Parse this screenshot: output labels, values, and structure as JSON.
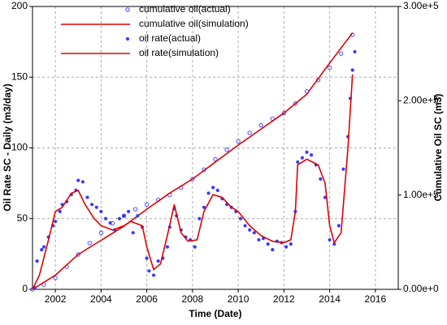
{
  "chart_data": {
    "type": "scatter-line",
    "xlabel": "Time (Date)",
    "ylabel": "Oil Rate SC - Daily (m3/day)",
    "y2label": "Cumulative Oil SC (m3)",
    "xlim": [
      2001,
      2017
    ],
    "xticks": [
      2002,
      2004,
      2006,
      2008,
      2010,
      2012,
      2014,
      2016
    ],
    "ylim": [
      0,
      200
    ],
    "yticks": [
      0,
      50,
      100,
      150,
      200
    ],
    "y2lim": [
      0,
      300000
    ],
    "y2ticks": [
      {
        "value": 0,
        "label": "0.00e+0"
      },
      {
        "value": 100000,
        "label": "1.00e+5"
      },
      {
        "value": 200000,
        "label": "2.00e+5"
      },
      {
        "value": 300000,
        "label": "3.00e+5"
      }
    ],
    "grid": true,
    "legend": "top",
    "series": [
      {
        "name": "cumulative oil(actual)",
        "color": "#3a3aff",
        "style": "open-circle",
        "axis": "y2",
        "x": [
          2001,
          2001.5,
          2002,
          2002.5,
          2003,
          2003.5,
          2004,
          2004.5,
          2005,
          2005.5,
          2006,
          2006.5,
          2007,
          2007.5,
          2008,
          2008.5,
          2009,
          2009.5,
          2010,
          2010.5,
          2011,
          2011.5,
          2012,
          2012.5,
          2013,
          2013.5,
          2014,
          2014.5,
          2015
        ],
        "values": [
          0,
          5000,
          12000,
          24000,
          37000,
          49000,
          60000,
          70000,
          78000,
          85000,
          90000,
          95000,
          100000,
          108000,
          117000,
          127000,
          138000,
          148000,
          157000,
          166000,
          174000,
          181000,
          187000,
          197000,
          210000,
          222000,
          235000,
          250000,
          270000
        ]
      },
      {
        "name": "cumulative oil(simulation)",
        "color": "#e00000",
        "style": "line",
        "axis": "y2",
        "x": [
          2001,
          2002,
          2003,
          2004,
          2005,
          2006,
          2007,
          2008,
          2009,
          2010,
          2011,
          2012,
          2013,
          2014,
          2015
        ],
        "values": [
          0,
          15000,
          37000,
          52000,
          67000,
          85000,
          102000,
          117000,
          135000,
          153000,
          170000,
          187000,
          207000,
          240000,
          272000
        ]
      },
      {
        "name": "oil rate(actual)",
        "color": "#3a3aff",
        "style": "dot",
        "axis": "y",
        "x": [
          2001.1,
          2001.2,
          2001.4,
          2001.5,
          2001.7,
          2001.9,
          2002.0,
          2002.2,
          2002.3,
          2002.5,
          2002.7,
          2002.9,
          2003.0,
          2003.2,
          2003.4,
          2003.6,
          2003.8,
          2004.0,
          2004.2,
          2004.4,
          2004.6,
          2004.8,
          2005.0,
          2005.2,
          2005.4,
          2005.6,
          2005.8,
          2006.0,
          2006.1,
          2006.3,
          2006.5,
          2006.7,
          2006.9,
          2007.0,
          2007.2,
          2007.3,
          2007.5,
          2007.7,
          2007.9,
          2008.1,
          2008.3,
          2008.5,
          2008.7,
          2008.9,
          2009.1,
          2009.3,
          2009.5,
          2009.7,
          2009.9,
          2010.1,
          2010.3,
          2010.5,
          2010.7,
          2010.9,
          2011.1,
          2011.3,
          2011.5,
          2011.7,
          2011.9,
          2012.1,
          2012.3,
          2012.5,
          2012.6,
          2012.8,
          2013.0,
          2013.2,
          2013.4,
          2013.6,
          2013.8,
          2014.0,
          2014.2,
          2014.4,
          2014.6,
          2014.8,
          2014.9,
          2015.0,
          2015.1
        ],
        "values": [
          1,
          20,
          28,
          30,
          37,
          45,
          48,
          55,
          60,
          62,
          67,
          70,
          77,
          76,
          65,
          60,
          58,
          55,
          50,
          47,
          42,
          50,
          52,
          55,
          40,
          52,
          44,
          22,
          13,
          10,
          20,
          22,
          30,
          44,
          57,
          52,
          42,
          37,
          35,
          30,
          50,
          58,
          68,
          72,
          70,
          64,
          60,
          58,
          55,
          50,
          45,
          42,
          40,
          35,
          36,
          32,
          28,
          34,
          33,
          30,
          32,
          55,
          90,
          93,
          97,
          95,
          88,
          78,
          65,
          35,
          32,
          45,
          85,
          108,
          135,
          155,
          168
        ]
      },
      {
        "name": "oil rate(simulation)",
        "color": "#e00000",
        "style": "line",
        "axis": "y",
        "x": [
          2001,
          2001.3,
          2001.7,
          2002,
          2002.3,
          2002.7,
          2003,
          2003.3,
          2003.7,
          2004,
          2004.5,
          2005,
          2005.3,
          2005.8,
          2006,
          2006.3,
          2006.6,
          2007,
          2007.2,
          2007.5,
          2007.8,
          2008.2,
          2008.5,
          2008.9,
          2009.3,
          2009.7,
          2010,
          2010.5,
          2011,
          2011.5,
          2012,
          2012.3,
          2012.5,
          2012.6,
          2013,
          2013.5,
          2013.8,
          2014,
          2014.2,
          2014.5,
          2014.8,
          2015
        ],
        "values": [
          0,
          10,
          35,
          55,
          58,
          68,
          70,
          60,
          50,
          45,
          42,
          45,
          48,
          45,
          30,
          14,
          18,
          45,
          60,
          40,
          34,
          35,
          55,
          67,
          65,
          58,
          55,
          45,
          38,
          34,
          33,
          35,
          55,
          88,
          92,
          88,
          75,
          45,
          33,
          40,
          100,
          152
        ]
      }
    ]
  }
}
